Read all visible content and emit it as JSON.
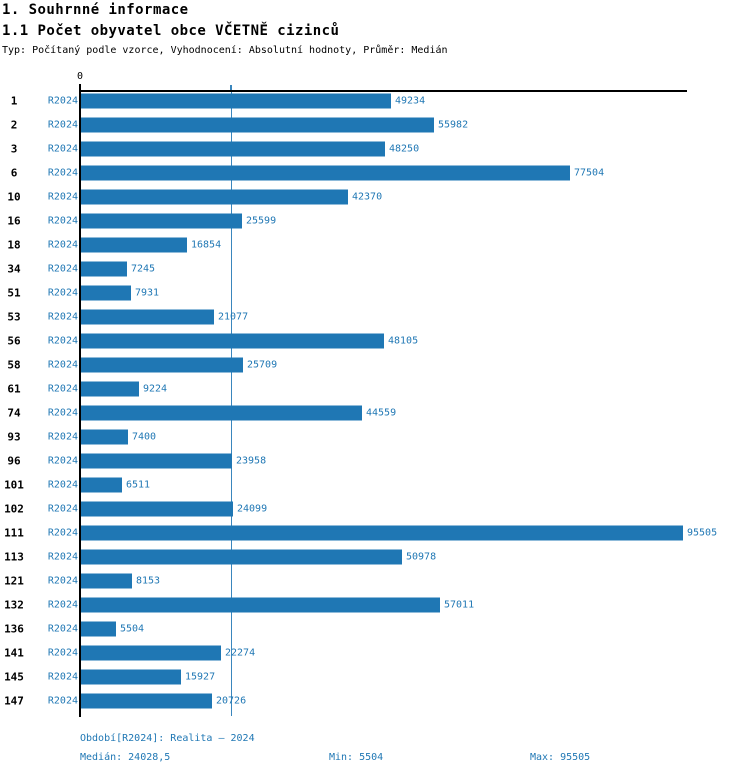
{
  "header": {
    "title": "1. Souhrnné informace",
    "subtitle": "1.1 Počet obyvatel obce VČETNĚ cizinců",
    "meta": "Typ: Počítaný podle vzorce, Vyhodnocení: Absolutní hodnoty, Průměr: Medián"
  },
  "chart_data": {
    "type": "bar",
    "orientation": "horizontal",
    "title": "1.1 Počet obyvatel obce VČETNĚ cizinců",
    "series_label": "R2024",
    "zero_tick_label": "0",
    "categories": [
      "1",
      "2",
      "3",
      "6",
      "10",
      "16",
      "18",
      "34",
      "51",
      "53",
      "56",
      "58",
      "61",
      "74",
      "93",
      "96",
      "101",
      "102",
      "111",
      "113",
      "121",
      "132",
      "136",
      "141",
      "145",
      "147"
    ],
    "values": [
      49234,
      55982,
      48250,
      77504,
      42370,
      25599,
      16854,
      7245,
      7931,
      21077,
      48105,
      25709,
      9224,
      44559,
      7400,
      23958,
      6511,
      24099,
      95505,
      50978,
      8153,
      57011,
      5504,
      22274,
      15927,
      20726
    ],
    "xlim": [
      0,
      96300
    ],
    "median_value": 24028.5,
    "grid": "median-line-only",
    "legend_position": "none",
    "colors": {
      "bar": "#1f77b4",
      "label": "#1f77b4",
      "axis": "#000000",
      "gridline": "#3a86bd"
    }
  },
  "footer": {
    "period": "Období[R2024]: Realita – 2024",
    "median": "Medián: 24028,5",
    "min": "Min: 5504",
    "max": "Max: 95505"
  }
}
